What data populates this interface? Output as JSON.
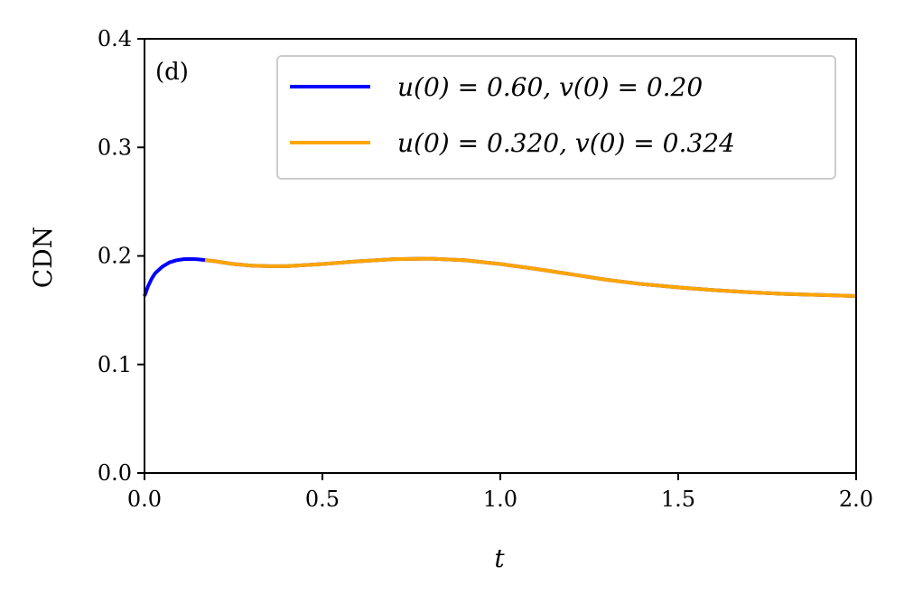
{
  "chart_data": {
    "type": "line",
    "title": "",
    "panel_label": "(d)",
    "xlabel": "t",
    "ylabel": "CDN",
    "xlim": [
      0.0,
      2.0
    ],
    "ylim": [
      0.0,
      0.4
    ],
    "xticks": [
      0.0,
      0.5,
      1.0,
      1.5,
      2.0
    ],
    "xtick_labels": [
      "0.0",
      "0.5",
      "1.0",
      "1.5",
      "2.0"
    ],
    "yticks": [
      0.0,
      0.1,
      0.2,
      0.3,
      0.4
    ],
    "ytick_labels": [
      "0.0",
      "0.1",
      "0.2",
      "0.3",
      "0.4"
    ],
    "grid": false,
    "legend_position": "top-right",
    "series": [
      {
        "name": "u(0) = 0.60, v(0) = 0.20",
        "color": "#0000ff",
        "x": [
          0.0,
          0.01,
          0.02,
          0.03,
          0.05,
          0.07,
          0.09,
          0.11,
          0.13,
          0.15,
          0.17,
          0.2,
          0.25,
          0.3,
          0.35,
          0.4,
          0.5,
          0.6,
          0.7,
          0.8,
          0.9,
          1.0,
          1.1,
          1.2,
          1.3,
          1.4,
          1.5,
          1.6,
          1.7,
          1.8,
          1.9,
          2.0
        ],
        "y": [
          0.163,
          0.172,
          0.179,
          0.184,
          0.19,
          0.194,
          0.196,
          0.197,
          0.1972,
          0.1968,
          0.1962,
          0.195,
          0.1925,
          0.191,
          0.1905,
          0.1905,
          0.1925,
          0.195,
          0.197,
          0.1975,
          0.196,
          0.1925,
          0.188,
          0.183,
          0.178,
          0.174,
          0.171,
          0.1685,
          0.1665,
          0.165,
          0.164,
          0.163
        ]
      },
      {
        "name": "u(0) = 0.320, v(0) = 0.324",
        "color": "#ffa500",
        "x": [
          0.17,
          0.2,
          0.25,
          0.3,
          0.35,
          0.4,
          0.5,
          0.6,
          0.7,
          0.8,
          0.9,
          1.0,
          1.1,
          1.2,
          1.3,
          1.4,
          1.5,
          1.6,
          1.7,
          1.8,
          1.9,
          2.0
        ],
        "y": [
          0.1962,
          0.195,
          0.1925,
          0.191,
          0.1905,
          0.1905,
          0.1925,
          0.195,
          0.197,
          0.1975,
          0.196,
          0.1925,
          0.188,
          0.183,
          0.178,
          0.174,
          0.171,
          0.1685,
          0.1665,
          0.165,
          0.164,
          0.163
        ]
      }
    ]
  }
}
